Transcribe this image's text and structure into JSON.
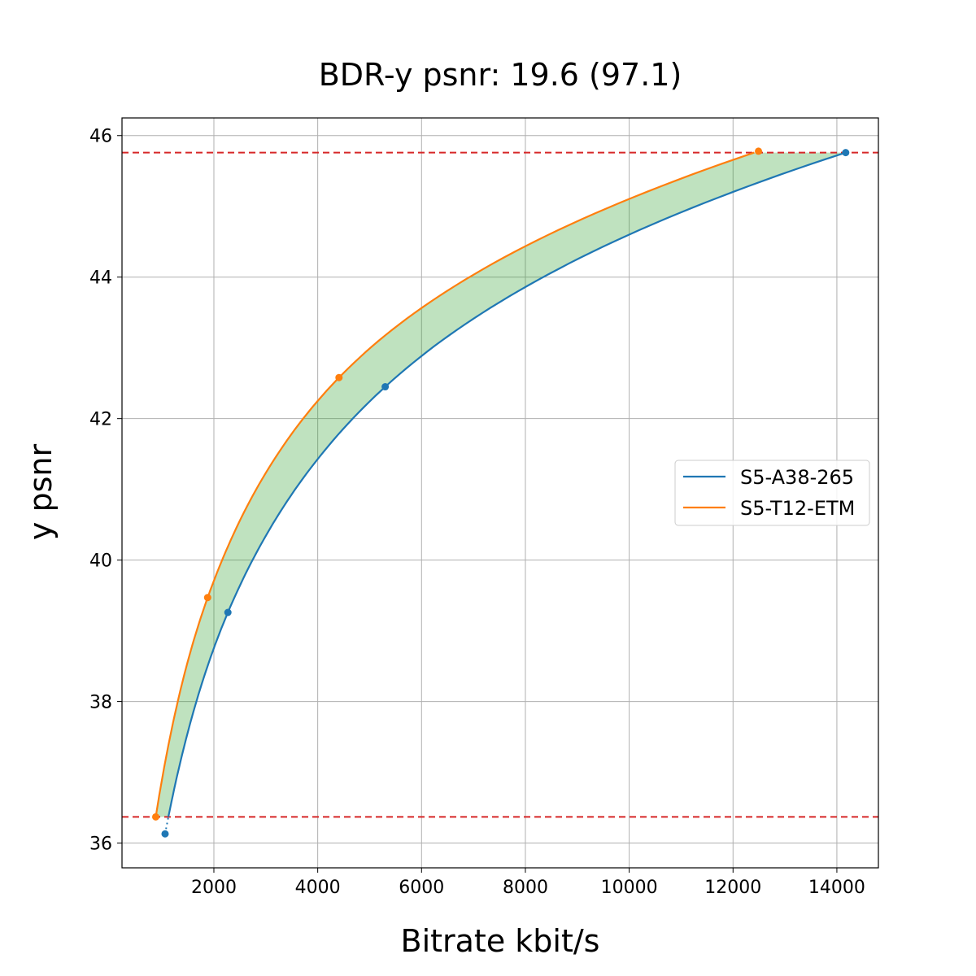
{
  "chart_data": {
    "type": "line",
    "title": "BDR-y psnr: 19.6 (97.1)",
    "xlabel": "Bitrate kbit/s",
    "ylabel": "y psnr",
    "xlim": [
      230,
      14800
    ],
    "ylim": [
      35.65,
      46.25
    ],
    "xticks": [
      2000,
      4000,
      6000,
      8000,
      10000,
      12000,
      14000
    ],
    "yticks": [
      36,
      38,
      40,
      42,
      44,
      46
    ],
    "grid": true,
    "legend_position": "center-right",
    "series": [
      {
        "name": "S5-A38-265",
        "color": "#1f77b4",
        "points": [
          {
            "x": 1060,
            "y": 36.13
          },
          {
            "x": 2270,
            "y": 39.26
          },
          {
            "x": 5300,
            "y": 42.45
          },
          {
            "x": 14170,
            "y": 45.76
          }
        ]
      },
      {
        "name": "S5-T12-ETM",
        "color": "#ff7f0e",
        "points": [
          {
            "x": 880,
            "y": 36.37
          },
          {
            "x": 1880,
            "y": 39.47
          },
          {
            "x": 4410,
            "y": 42.58
          },
          {
            "x": 12490,
            "y": 45.78
          }
        ]
      }
    ],
    "reference_lines": {
      "orientation": "horizontal",
      "color": "#d62728",
      "style": "dashed",
      "y_values": [
        36.37,
        45.76
      ]
    },
    "fill_between": {
      "color": "#2ca02c",
      "opacity": 0.3,
      "y_range": [
        36.37,
        45.76
      ]
    }
  }
}
